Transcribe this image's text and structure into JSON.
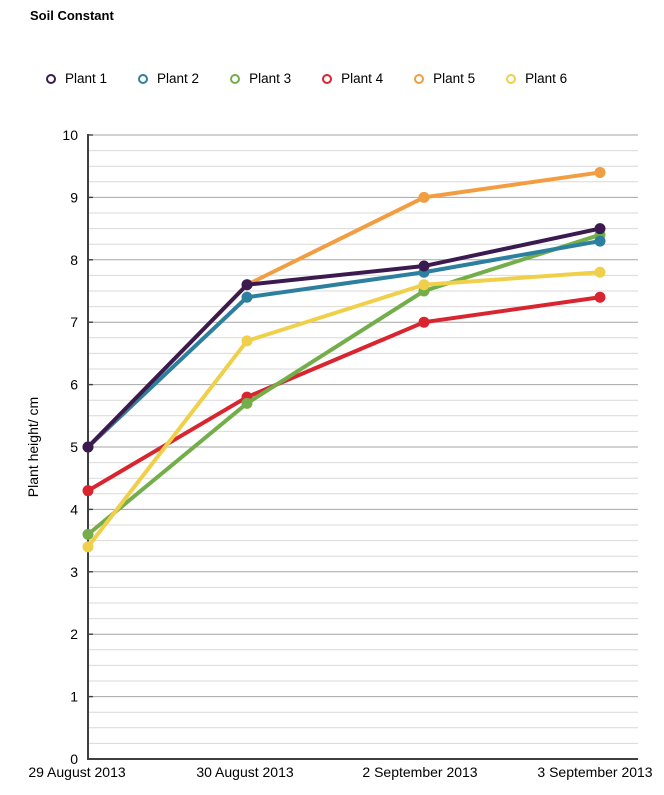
{
  "page": {
    "title": "Soil Constant"
  },
  "chart_data": {
    "type": "line",
    "title": "Soil Constant",
    "ylabel": "Plant height/ cm",
    "xlabel": "",
    "ylim": [
      0,
      10
    ],
    "y_major_step": 1,
    "y_minor_step": 0.25,
    "y_tick_labels": [
      "0",
      "1",
      "2",
      "3",
      "4",
      "5",
      "6",
      "7",
      "8",
      "9",
      "10"
    ],
    "grid": true,
    "legend_position": "top",
    "categories": [
      "29 August 2013",
      "30 August 2013",
      "2 September 2013",
      "3 September 2013"
    ],
    "series": [
      {
        "name": "Plant 1",
        "color": "#3b1a4f",
        "values": [
          5.0,
          7.6,
          7.9,
          8.5
        ]
      },
      {
        "name": "Plant 2",
        "color": "#2d7f9f",
        "values": [
          5.0,
          7.4,
          7.8,
          8.3
        ]
      },
      {
        "name": "Plant 3",
        "color": "#73ae4b",
        "values": [
          3.6,
          5.7,
          7.5,
          8.4
        ]
      },
      {
        "name": "Plant 4",
        "color": "#d8252f",
        "values": [
          4.3,
          5.8,
          7.0,
          7.4
        ]
      },
      {
        "name": "Plant 5",
        "color": "#f19e42",
        "values": [
          5.0,
          7.6,
          9.0,
          9.4
        ]
      },
      {
        "name": "Plant 6",
        "color": "#f0d04b",
        "values": [
          3.4,
          6.7,
          7.6,
          7.8
        ]
      }
    ],
    "axis_color": "#3f3f3f",
    "major_grid_color": "#a6a6a6",
    "minor_grid_color": "#d9d9d9"
  }
}
